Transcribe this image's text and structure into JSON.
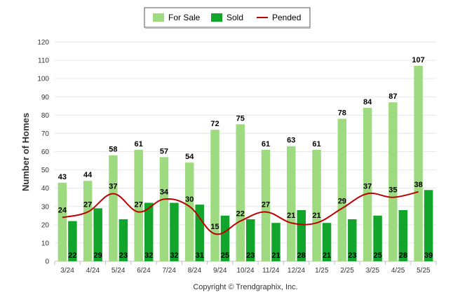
{
  "chart_data": {
    "type": "bar",
    "title": "",
    "xlabel": "",
    "ylabel": "Number of Homes",
    "ylim": [
      0,
      120
    ],
    "yticks": [
      0,
      10,
      20,
      30,
      40,
      50,
      60,
      70,
      80,
      90,
      100,
      110,
      120
    ],
    "grid": true,
    "legend_position": "top-center",
    "categories": [
      "3/24",
      "4/24",
      "5/24",
      "6/24",
      "7/24",
      "8/24",
      "9/24",
      "10/24",
      "11/24",
      "12/24",
      "1/25",
      "2/25",
      "3/25",
      "4/25",
      "5/25"
    ],
    "series": [
      {
        "name": "For Sale",
        "kind": "bar",
        "color": "#9edb80",
        "values": [
          43,
          44,
          58,
          61,
          57,
          54,
          72,
          75,
          61,
          63,
          61,
          78,
          84,
          87,
          107
        ]
      },
      {
        "name": "Sold",
        "kind": "bar",
        "color": "#12a52c",
        "values": [
          22,
          29,
          23,
          32,
          32,
          31,
          25,
          23,
          21,
          28,
          21,
          23,
          25,
          28,
          39
        ]
      },
      {
        "name": "Pended",
        "kind": "line",
        "color": "#c00000",
        "values": [
          24,
          27,
          37,
          27,
          34,
          30,
          15,
          22,
          27,
          21,
          21,
          29,
          37,
          35,
          38
        ]
      }
    ]
  },
  "credits": "Copyright © Trendgraphix, Inc."
}
